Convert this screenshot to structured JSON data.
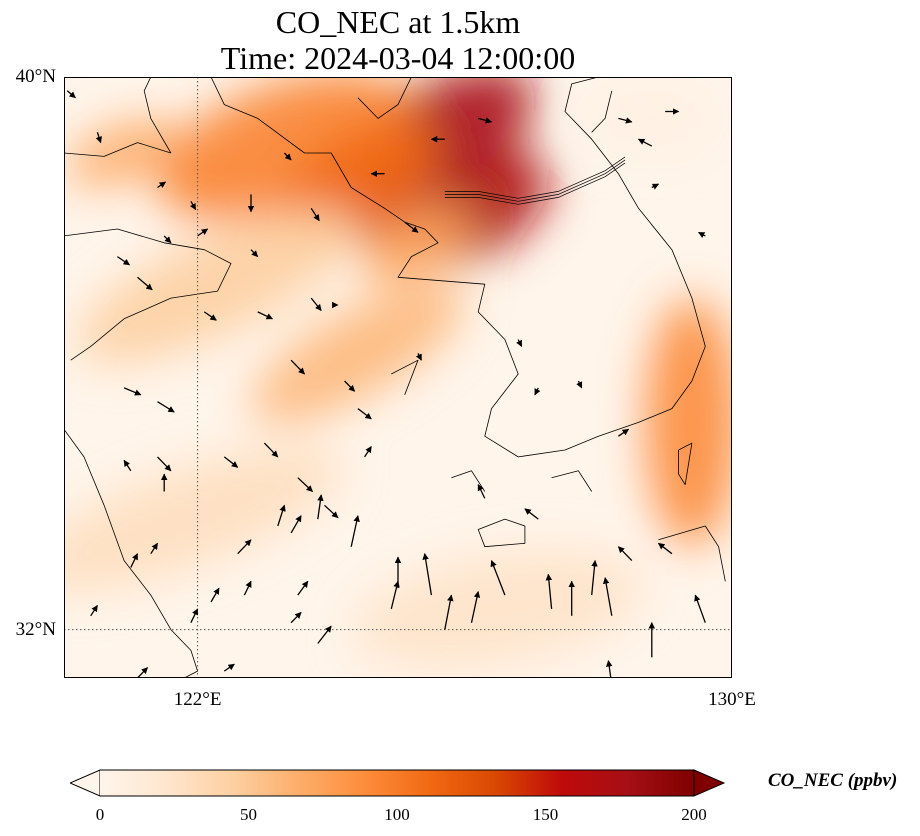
{
  "title": {
    "line1": "CO_NEC at 1.5km",
    "line2": "Time: 2024-03-04 12:00:00"
  },
  "map": {
    "lat_range": [
      31.3,
      40.0
    ],
    "lon_range": [
      120.0,
      130.0
    ],
    "gridlines": {
      "lat": 32,
      "lon": 122
    },
    "lat_labels": [
      {
        "lat": 40,
        "text": "40°N"
      },
      {
        "lat": 32,
        "text": "32°N"
      }
    ],
    "lon_labels": [
      {
        "lon": 122,
        "text": "122°E"
      },
      {
        "lon": 130,
        "text": "130°E"
      }
    ],
    "plumes": [
      {
        "lon": 125.4,
        "lat": 38.9,
        "rx": 1.9,
        "ry": 0.85,
        "angle": -35,
        "value": 175
      },
      {
        "lon": 126.3,
        "lat": 38.1,
        "rx": 1.1,
        "ry": 0.6,
        "angle": -35,
        "value": 170
      },
      {
        "lon": 123.3,
        "lat": 39.0,
        "rx": 2.0,
        "ry": 0.9,
        "angle": -20,
        "value": 95
      },
      {
        "lon": 124.4,
        "lat": 38.5,
        "rx": 1.3,
        "ry": 0.7,
        "angle": -30,
        "value": 110
      },
      {
        "lon": 120.9,
        "lat": 38.9,
        "rx": 0.9,
        "ry": 0.4,
        "angle": -20,
        "value": 70
      },
      {
        "lon": 124.4,
        "lat": 36.0,
        "rx": 1.8,
        "ry": 0.6,
        "angle": -30,
        "value": 60
      },
      {
        "lon": 129.4,
        "lat": 35.0,
        "rx": 0.7,
        "ry": 1.8,
        "angle": 0,
        "value": 90
      },
      {
        "lon": 122.3,
        "lat": 37.0,
        "rx": 2.3,
        "ry": 0.7,
        "angle": -25,
        "value": 45
      },
      {
        "lon": 125.3,
        "lat": 37.6,
        "rx": 0.9,
        "ry": 0.45,
        "angle": -30,
        "value": 75
      },
      {
        "lon": 121.8,
        "lat": 33.6,
        "rx": 2.5,
        "ry": 0.7,
        "angle": -20,
        "value": 30
      },
      {
        "lon": 126.5,
        "lat": 32.3,
        "rx": 2.2,
        "ry": 0.8,
        "angle": -10,
        "value": 25
      },
      {
        "lon": 128.8,
        "lat": 39.4,
        "rx": 1.0,
        "ry": 0.5,
        "angle": 0,
        "value": 8
      }
    ],
    "coastlines": [
      [
        [
          120.0,
          37.7
        ],
        [
          120.8,
          37.8
        ],
        [
          121.5,
          37.6
        ],
        [
          122.1,
          37.5
        ],
        [
          122.5,
          37.3
        ],
        [
          122.3,
          36.9
        ],
        [
          121.6,
          36.8
        ],
        [
          120.9,
          36.5
        ],
        [
          120.4,
          36.1
        ],
        [
          120.1,
          35.9
        ]
      ],
      [
        [
          120.0,
          34.9
        ],
        [
          120.3,
          34.5
        ],
        [
          120.6,
          33.8
        ],
        [
          120.9,
          33.0
        ],
        [
          121.3,
          32.5
        ],
        [
          121.6,
          32.0
        ],
        [
          121.9,
          31.7
        ],
        [
          122.0,
          31.4
        ],
        [
          121.8,
          31.3
        ]
      ],
      [
        [
          120.0,
          38.9
        ],
        [
          120.6,
          38.85
        ],
        [
          121.1,
          39.05
        ],
        [
          121.6,
          38.9
        ],
        [
          121.3,
          39.4
        ],
        [
          121.2,
          39.8
        ],
        [
          121.3,
          40.0
        ]
      ],
      [
        [
          122.2,
          40.0
        ],
        [
          122.4,
          39.6
        ],
        [
          122.9,
          39.4
        ],
        [
          123.6,
          38.9
        ],
        [
          124.0,
          38.9
        ],
        [
          124.3,
          38.4
        ],
        [
          124.8,
          38.1
        ],
        [
          125.1,
          37.9
        ],
        [
          125.4,
          37.8
        ],
        [
          125.6,
          37.6
        ],
        [
          125.2,
          37.4
        ],
        [
          125.0,
          37.1
        ],
        [
          126.3,
          37.0
        ],
        [
          126.2,
          36.6
        ],
        [
          126.6,
          36.2
        ],
        [
          126.8,
          35.7
        ],
        [
          126.4,
          35.2
        ],
        [
          126.3,
          34.8
        ],
        [
          126.8,
          34.5
        ],
        [
          127.5,
          34.6
        ],
        [
          128.0,
          34.8
        ],
        [
          128.6,
          35.0
        ],
        [
          129.1,
          35.2
        ],
        [
          129.4,
          35.6
        ],
        [
          129.6,
          36.1
        ],
        [
          129.4,
          36.8
        ],
        [
          129.1,
          37.5
        ],
        [
          128.6,
          38.1
        ],
        [
          128.3,
          38.6
        ],
        [
          127.9,
          39.1
        ],
        [
          127.5,
          39.5
        ],
        [
          127.6,
          39.9
        ],
        [
          128.0,
          40.0
        ]
      ],
      [
        [
          125.2,
          40.0
        ],
        [
          125.0,
          39.6
        ],
        [
          124.7,
          39.4
        ],
        [
          124.4,
          39.7
        ]
      ],
      [
        [
          127.9,
          39.2
        ],
        [
          128.1,
          39.4
        ],
        [
          128.2,
          39.8
        ]
      ],
      [
        [
          126.6,
          33.6
        ],
        [
          126.2,
          33.45
        ],
        [
          126.3,
          33.2
        ],
        [
          126.9,
          33.25
        ],
        [
          126.9,
          33.5
        ],
        [
          126.6,
          33.6
        ]
      ],
      [
        [
          129.2,
          34.6
        ],
        [
          129.4,
          34.7
        ],
        [
          129.3,
          34.1
        ],
        [
          129.2,
          34.25
        ],
        [
          129.2,
          34.6
        ]
      ],
      [
        [
          128.9,
          33.3
        ],
        [
          129.6,
          33.5
        ],
        [
          129.8,
          33.2
        ],
        [
          129.9,
          32.7
        ]
      ],
      [
        [
          125.8,
          34.2
        ],
        [
          126.1,
          34.3
        ],
        [
          126.3,
          34.0
        ]
      ],
      [
        [
          127.3,
          34.2
        ],
        [
          127.7,
          34.3
        ],
        [
          127.9,
          34.0
        ]
      ],
      [
        [
          124.9,
          35.7
        ],
        [
          125.3,
          35.9
        ],
        [
          125.1,
          35.4
        ]
      ]
    ],
    "dmz": [
      [
        125.7,
        38.3
      ],
      [
        126.2,
        38.3
      ],
      [
        126.8,
        38.2
      ],
      [
        127.4,
        38.3
      ],
      [
        128.1,
        38.6
      ],
      [
        128.4,
        38.8
      ]
    ],
    "wind_arrows": [
      [
        120.05,
        39.8,
        0.12,
        -0.1
      ],
      [
        120.5,
        39.2,
        0.05,
        -0.15
      ],
      [
        121.4,
        38.4,
        0.12,
        0.08
      ],
      [
        121.9,
        38.2,
        0.07,
        -0.12
      ],
      [
        122.0,
        37.7,
        0.15,
        0.1
      ],
      [
        122.8,
        37.5,
        0.1,
        -0.1
      ],
      [
        123.3,
        38.9,
        0.1,
        -0.1
      ],
      [
        123.7,
        38.1,
        0.12,
        -0.18
      ],
      [
        122.8,
        38.3,
        0.0,
        -0.25
      ],
      [
        120.8,
        37.4,
        0.18,
        -0.12
      ],
      [
        121.1,
        37.1,
        0.22,
        -0.18
      ],
      [
        122.1,
        36.6,
        0.18,
        -0.12
      ],
      [
        122.9,
        36.6,
        0.22,
        -0.1
      ],
      [
        123.7,
        36.8,
        0.15,
        -0.18
      ],
      [
        123.4,
        35.9,
        0.2,
        -0.2
      ],
      [
        124.2,
        35.6,
        0.15,
        -0.15
      ],
      [
        120.9,
        35.5,
        0.25,
        -0.1
      ],
      [
        121.4,
        35.3,
        0.25,
        -0.15
      ],
      [
        121.4,
        34.5,
        0.2,
        -0.2
      ],
      [
        122.4,
        34.5,
        0.2,
        -0.15
      ],
      [
        123.5,
        34.2,
        0.22,
        -0.2
      ],
      [
        124.4,
        35.2,
        0.2,
        -0.15
      ],
      [
        123.0,
        34.7,
        0.2,
        -0.2
      ],
      [
        124.5,
        34.5,
        0.1,
        0.15
      ],
      [
        123.9,
        33.8,
        0.2,
        -0.18
      ],
      [
        123.4,
        33.4,
        0.15,
        0.25
      ],
      [
        121.0,
        34.3,
        -0.1,
        0.15
      ],
      [
        121.5,
        34.0,
        0.0,
        0.25
      ],
      [
        122.6,
        33.1,
        0.2,
        0.2
      ],
      [
        123.2,
        33.5,
        0.1,
        0.3
      ],
      [
        121.9,
        32.1,
        0.1,
        0.2
      ],
      [
        121.0,
        32.9,
        0.1,
        0.2
      ],
      [
        122.7,
        32.5,
        0.1,
        0.2
      ],
      [
        123.5,
        32.5,
        0.15,
        0.2
      ],
      [
        124.3,
        33.2,
        0.1,
        0.45
      ],
      [
        123.8,
        33.6,
        0.05,
        0.35
      ],
      [
        121.3,
        33.1,
        0.1,
        0.15
      ],
      [
        122.2,
        32.4,
        0.12,
        0.2
      ],
      [
        121.0,
        31.2,
        0.25,
        0.25
      ],
      [
        120.4,
        32.2,
        0.1,
        0.15
      ],
      [
        122.4,
        31.4,
        0.15,
        0.1
      ],
      [
        123.8,
        31.8,
        0.2,
        0.25
      ],
      [
        123.4,
        32.1,
        0.15,
        0.15
      ],
      [
        124.9,
        32.3,
        0.1,
        0.4
      ],
      [
        125.0,
        32.6,
        0.0,
        0.45
      ],
      [
        125.7,
        32.0,
        0.1,
        0.5
      ],
      [
        126.1,
        32.1,
        0.1,
        0.45
      ],
      [
        125.5,
        32.5,
        -0.1,
        0.6
      ],
      [
        126.6,
        32.5,
        -0.2,
        0.5
      ],
      [
        127.3,
        32.3,
        -0.05,
        0.5
      ],
      [
        127.6,
        32.2,
        0.0,
        0.5
      ],
      [
        127.9,
        32.5,
        0.05,
        0.5
      ],
      [
        128.2,
        32.2,
        -0.1,
        0.55
      ],
      [
        128.8,
        31.6,
        0.0,
        0.5
      ],
      [
        128.2,
        31.2,
        -0.05,
        0.35
      ],
      [
        129.6,
        32.1,
        -0.15,
        0.4
      ],
      [
        129.1,
        33.1,
        -0.2,
        0.15
      ],
      [
        128.5,
        33.0,
        -0.2,
        0.2
      ],
      [
        127.1,
        33.6,
        -0.2,
        0.15
      ],
      [
        126.3,
        33.9,
        -0.1,
        0.2
      ],
      [
        127.7,
        35.6,
        0.05,
        -0.1
      ],
      [
        128.3,
        34.8,
        0.15,
        0.1
      ],
      [
        127.1,
        35.5,
        -0.05,
        -0.1
      ],
      [
        128.8,
        39.0,
        -0.2,
        0.1
      ],
      [
        128.8,
        38.4,
        0.1,
        0.05
      ],
      [
        129.6,
        37.7,
        -0.1,
        0.05
      ],
      [
        124.8,
        38.6,
        -0.2,
        0.0
      ],
      [
        125.1,
        37.9,
        0.2,
        -0.15
      ],
      [
        125.7,
        39.1,
        -0.2,
        0.0
      ],
      [
        128.3,
        39.4,
        0.2,
        -0.05
      ],
      [
        129.0,
        39.5,
        0.2,
        0.0
      ],
      [
        126.2,
        39.4,
        0.2,
        -0.05
      ],
      [
        121.5,
        37.7,
        0.1,
        -0.1
      ],
      [
        124.1,
        36.7,
        0.0,
        0.0
      ],
      [
        125.3,
        36.0,
        0.05,
        -0.1
      ],
      [
        126.8,
        36.2,
        0.05,
        -0.1
      ]
    ]
  },
  "colorbar": {
    "label": "CO_NEC (ppbv)",
    "min": 0,
    "max": 200,
    "ticks": [
      0,
      50,
      100,
      150,
      200
    ],
    "colors": [
      "#fff5eb",
      "#fee6ce",
      "#fdd0a2",
      "#fdae6b",
      "#fd8d3c",
      "#f16913",
      "#d94801",
      "#bf0a0a",
      "#a50f15",
      "#7f0000"
    ]
  }
}
